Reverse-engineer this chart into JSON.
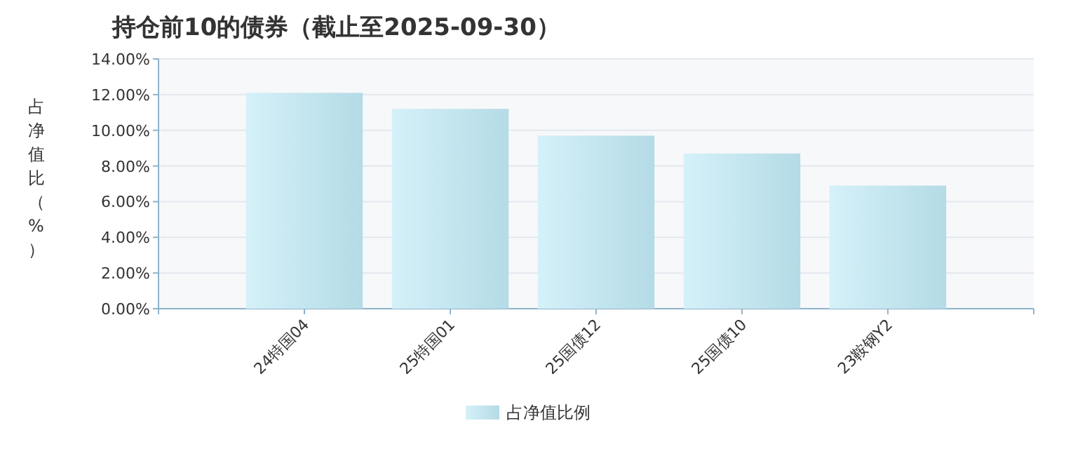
{
  "chart_data": {
    "type": "bar",
    "title": "持仓前10的债券（截止至2025-09-30）",
    "ylabel": "占净值比（%）",
    "categories": [
      "24特国04",
      "25特国01",
      "25国债12",
      "25国债10",
      "23鞍钢Y2"
    ],
    "series": [
      {
        "name": "占净值比例",
        "color": "#bfe9f5",
        "values": [
          12.1,
          11.2,
          9.7,
          8.7,
          6.9
        ]
      }
    ],
    "ylim": [
      0,
      14
    ],
    "yticks": [
      {
        "value": 0,
        "label": "0.00%"
      },
      {
        "value": 2,
        "label": "2.00%"
      },
      {
        "value": 4,
        "label": "4.00%"
      },
      {
        "value": 6,
        "label": "6.00%"
      },
      {
        "value": 8,
        "label": "8.00%"
      },
      {
        "value": 10,
        "label": "10.00%"
      },
      {
        "value": 12,
        "label": "12.00%"
      },
      {
        "value": 14,
        "label": "14.00%"
      }
    ],
    "grid": "y",
    "legend": "bottom"
  }
}
